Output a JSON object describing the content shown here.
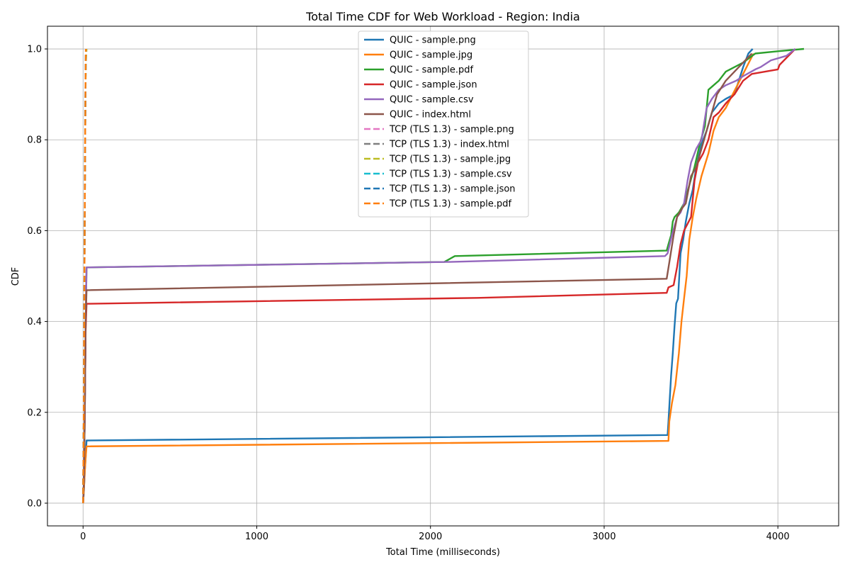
{
  "chart_data": {
    "type": "line",
    "title": "Total Time CDF for Web Workload - Region: India",
    "xlabel": "Total Time (milliseconds)",
    "ylabel": "CDF",
    "xlim": [
      -205,
      4350
    ],
    "ylim": [
      -0.05,
      1.05
    ],
    "xticks": [
      0,
      1000,
      2000,
      3000,
      4000
    ],
    "yticks": [
      0.0,
      0.2,
      0.4,
      0.6,
      0.8,
      1.0
    ],
    "grid": true,
    "legend_position": "top-center",
    "series": [
      {
        "name": "QUIC - sample.png",
        "color": "#1f77b4",
        "dash": "solid",
        "x": [
          0,
          5,
          10,
          15,
          20,
          3365,
          3370,
          3385,
          3395,
          3405,
          3415,
          3425,
          3440,
          3455,
          3470,
          3490,
          3510,
          3530,
          3560,
          3590,
          3620,
          3660,
          3700,
          3750,
          3800,
          3830,
          3855
        ],
        "y": [
          0.0,
          0.03,
          0.07,
          0.1,
          0.138,
          0.15,
          0.18,
          0.28,
          0.33,
          0.39,
          0.44,
          0.45,
          0.55,
          0.58,
          0.62,
          0.66,
          0.69,
          0.74,
          0.79,
          0.82,
          0.86,
          0.88,
          0.89,
          0.9,
          0.96,
          0.99,
          1.0
        ]
      },
      {
        "name": "QUIC - sample.jpg",
        "color": "#ff7f0e",
        "dash": "solid",
        "x": [
          0,
          5,
          10,
          15,
          20,
          3370,
          3375,
          3390,
          3410,
          3430,
          3445,
          3460,
          3475,
          3490,
          3510,
          3530,
          3560,
          3600,
          3630,
          3660,
          3700,
          3740,
          3780,
          3820,
          3860
        ],
        "y": [
          0.0,
          0.03,
          0.07,
          0.1,
          0.125,
          0.137,
          0.18,
          0.22,
          0.26,
          0.33,
          0.4,
          0.45,
          0.5,
          0.58,
          0.63,
          0.67,
          0.72,
          0.77,
          0.82,
          0.85,
          0.87,
          0.9,
          0.93,
          0.96,
          0.99
        ]
      },
      {
        "name": "QUIC - sample.pdf",
        "color": "#2ca02c",
        "dash": "solid",
        "x": [
          0,
          5,
          10,
          15,
          20,
          2080,
          2140,
          3360,
          3370,
          3385,
          3395,
          3405,
          3430,
          3460,
          3490,
          3520,
          3550,
          3580,
          3600,
          3630,
          3660,
          3700,
          3800,
          3870,
          4000,
          4150
        ],
        "y": [
          0.0,
          0.05,
          0.2,
          0.4,
          0.519,
          0.531,
          0.544,
          0.556,
          0.57,
          0.59,
          0.62,
          0.63,
          0.64,
          0.66,
          0.7,
          0.74,
          0.79,
          0.83,
          0.91,
          0.92,
          0.93,
          0.95,
          0.97,
          0.99,
          0.995,
          1.0
        ]
      },
      {
        "name": "QUIC - sample.json",
        "color": "#d62728",
        "dash": "solid",
        "x": [
          0,
          5,
          10,
          15,
          20,
          2270,
          3360,
          3370,
          3400,
          3420,
          3440,
          3460,
          3500,
          3520,
          3540,
          3570,
          3600,
          3630,
          3660,
          3700,
          3750,
          3800,
          3850,
          4000,
          4010,
          4100
        ],
        "y": [
          0.0,
          0.05,
          0.2,
          0.38,
          0.439,
          0.452,
          0.463,
          0.475,
          0.48,
          0.52,
          0.57,
          0.6,
          0.63,
          0.71,
          0.75,
          0.77,
          0.8,
          0.85,
          0.86,
          0.88,
          0.9,
          0.93,
          0.945,
          0.955,
          0.965,
          1.0
        ]
      },
      {
        "name": "QUIC - sample.csv",
        "color": "#9467bd",
        "dash": "solid",
        "x": [
          0,
          5,
          10,
          15,
          20,
          2100,
          3350,
          3365,
          3390,
          3420,
          3440,
          3460,
          3480,
          3500,
          3530,
          3560,
          3590,
          3620,
          3660,
          3700,
          3760,
          3800,
          3870,
          3900,
          3960,
          4050,
          4100
        ],
        "y": [
          0.0,
          0.05,
          0.2,
          0.4,
          0.519,
          0.531,
          0.544,
          0.55,
          0.59,
          0.63,
          0.64,
          0.66,
          0.71,
          0.75,
          0.78,
          0.8,
          0.87,
          0.89,
          0.91,
          0.92,
          0.93,
          0.94,
          0.955,
          0.96,
          0.975,
          0.985,
          1.0
        ]
      },
      {
        "name": "QUIC - index.html",
        "color": "#8c564b",
        "dash": "solid",
        "x": [
          0,
          5,
          10,
          15,
          20,
          3360,
          3375,
          3400,
          3420,
          3450,
          3470,
          3500,
          3530,
          3560,
          3590,
          3620,
          3650,
          3700,
          3750,
          3800,
          3850
        ],
        "y": [
          0.0,
          0.05,
          0.2,
          0.4,
          0.469,
          0.494,
          0.53,
          0.59,
          0.63,
          0.65,
          0.66,
          0.72,
          0.74,
          0.78,
          0.82,
          0.86,
          0.9,
          0.93,
          0.95,
          0.97,
          0.99
        ]
      },
      {
        "name": "TCP (TLS 1.3) - sample.png",
        "color": "#e377c2",
        "dash": "dashed",
        "x": [
          0,
          2,
          4,
          6,
          8,
          10,
          12,
          14,
          16
        ],
        "y": [
          0.0,
          0.1,
          0.2,
          0.35,
          0.5,
          0.65,
          0.8,
          0.92,
          1.0
        ]
      },
      {
        "name": "TCP (TLS 1.3) - index.html",
        "color": "#7f7f7f",
        "dash": "dashed",
        "x": [
          0,
          2,
          4,
          6,
          8,
          10,
          12,
          14,
          16
        ],
        "y": [
          0.0,
          0.1,
          0.2,
          0.35,
          0.5,
          0.65,
          0.8,
          0.92,
          1.0
        ]
      },
      {
        "name": "TCP (TLS 1.3) - sample.jpg",
        "color": "#bcbd22",
        "dash": "dashed",
        "x": [
          0,
          2,
          4,
          6,
          8,
          10,
          12,
          14,
          16,
          20
        ],
        "y": [
          0.0,
          0.1,
          0.2,
          0.35,
          0.5,
          0.65,
          0.8,
          0.9,
          0.97,
          1.0
        ]
      },
      {
        "name": "TCP (TLS 1.3) - sample.csv",
        "color": "#17becf",
        "dash": "dashed",
        "x": [
          0,
          2,
          4,
          6,
          8,
          10,
          12,
          14,
          16
        ],
        "y": [
          0.0,
          0.1,
          0.2,
          0.35,
          0.5,
          0.65,
          0.8,
          0.92,
          1.0
        ]
      },
      {
        "name": "TCP (TLS 1.3) - sample.json",
        "color": "#1f77b4",
        "dash": "dashed",
        "x": [
          0,
          2,
          4,
          6,
          8,
          10,
          12,
          14,
          16
        ],
        "y": [
          0.0,
          0.1,
          0.2,
          0.35,
          0.5,
          0.65,
          0.8,
          0.92,
          1.0
        ]
      },
      {
        "name": "TCP (TLS 1.3) - sample.pdf",
        "color": "#ff7f0e",
        "dash": "dashed",
        "x": [
          0,
          2,
          4,
          6,
          8,
          10,
          12,
          14,
          16
        ],
        "y": [
          0.0,
          0.1,
          0.2,
          0.35,
          0.5,
          0.65,
          0.8,
          0.92,
          1.0
        ]
      }
    ]
  }
}
